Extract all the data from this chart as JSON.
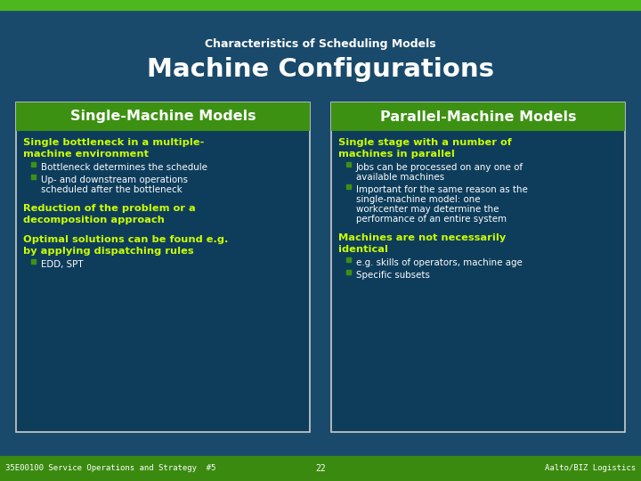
{
  "bg_color": "#1a4a6b",
  "top_stripe_color": "#4db81e",
  "footer_bg": "#3a8a10",
  "title_subtitle": "Characteristics of Scheduling Models",
  "title_main": "Machine Configurations",
  "title_color": "#ffffff",
  "subtitle_color": "#ffffff",
  "left_box": {
    "header": "Single-Machine Models",
    "header_bg": "#3d9112",
    "header_color": "#ffffff",
    "box_bg": "#0e3d5c",
    "box_border": "#cccccc",
    "bold_items": [
      "Single bottleneck in a multiple-\nmachine environment",
      "Reduction of the problem or a\ndecomposition approach",
      "Optimal solutions can be found e.g.\nby applying dispatching rules"
    ],
    "bullet_groups": [
      [
        "Bottleneck determines the schedule",
        "Up- and downstream operations\nscheduled after the bottleneck"
      ],
      [],
      [
        "EDD, SPT"
      ]
    ],
    "bold_color": "#ccff00",
    "bullet_color": "#ffffff",
    "bullet_marker_color": "#3d9112"
  },
  "right_box": {
    "header": "Parallel-Machine Models",
    "header_bg": "#3d9112",
    "header_color": "#ffffff",
    "box_bg": "#0e3d5c",
    "box_border": "#cccccc",
    "bold_items": [
      "Single stage with a number of\nmachines in parallel",
      "Machines are not necessarily\nidentical"
    ],
    "bullet_groups": [
      [
        "Jobs can be processed on any one of\navailable machines",
        "Important for the same reason as the\nsingle-machine model: one\nworkcenter may determine the\nperformance of an entire system"
      ],
      [
        "e.g. skills of operators, machine age",
        "Specific subsets"
      ]
    ],
    "bold_color": "#ccff00",
    "bullet_color": "#ffffff",
    "bullet_marker_color": "#3d9112"
  },
  "footer_left": "35E00100 Service Operations and Strategy  #5",
  "footer_center": "22",
  "footer_right": "Aalto/BIZ Logistics",
  "footer_color": "#ffffff"
}
